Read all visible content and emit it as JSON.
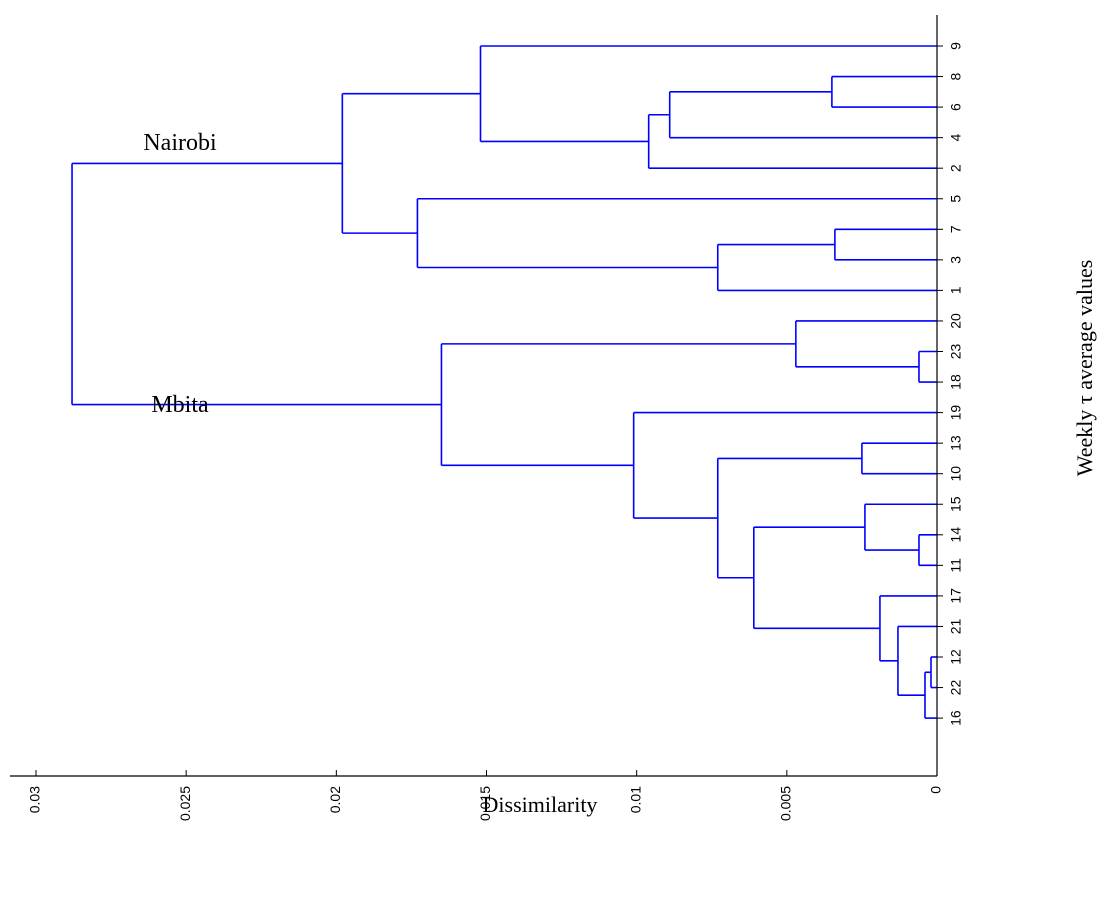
{
  "chart_data": {
    "type": "dendrogram",
    "orientation": "horizontal, leaves on right",
    "xlabel": "Dissimilarity",
    "ylabel": "Weekly τ average values",
    "xlim": [
      0.0302,
      0
    ],
    "xticks": [
      {
        "value": 0.03,
        "label": "0.03"
      },
      {
        "value": 0.025,
        "label": "0.025"
      },
      {
        "value": 0.02,
        "label": "0.02"
      },
      {
        "value": 0.015,
        "label": "0.015"
      },
      {
        "value": 0.01,
        "label": "0.01"
      },
      {
        "value": 0.005,
        "label": "0.005"
      },
      {
        "value": 0,
        "label": "0"
      }
    ],
    "leaves": [
      "9",
      "8",
      "6",
      "4",
      "2",
      "5",
      "7",
      "3",
      "1",
      "20",
      "23",
      "18",
      "19",
      "13",
      "10",
      "15",
      "14",
      "11",
      "17",
      "21",
      "12",
      "22",
      "16"
    ],
    "merges": [
      {
        "id": "m1",
        "children": [
          "12",
          "22"
        ],
        "height": 0.0002
      },
      {
        "id": "m2",
        "children": [
          "m1",
          "16"
        ],
        "height": 0.0004
      },
      {
        "id": "m3",
        "children": [
          "21",
          "m2"
        ],
        "height": 0.0013
      },
      {
        "id": "m4",
        "children": [
          "17",
          "m3"
        ],
        "height": 0.0019
      },
      {
        "id": "m5",
        "children": [
          "14",
          "11"
        ],
        "height": 0.0006
      },
      {
        "id": "m6",
        "children": [
          "15",
          "m5"
        ],
        "height": 0.0024
      },
      {
        "id": "m7",
        "children": [
          "m6",
          "m4"
        ],
        "height": 0.0061
      },
      {
        "id": "m8",
        "children": [
          "13",
          "10"
        ],
        "height": 0.0025
      },
      {
        "id": "m9",
        "children": [
          "m8",
          "m7"
        ],
        "height": 0.0073
      },
      {
        "id": "m10",
        "children": [
          "19",
          "m9"
        ],
        "height": 0.0101
      },
      {
        "id": "m11",
        "children": [
          "23",
          "18"
        ],
        "height": 0.0006
      },
      {
        "id": "m12",
        "children": [
          "20",
          "m11"
        ],
        "height": 0.0047
      },
      {
        "id": "m13",
        "children": [
          "m12",
          "m10"
        ],
        "height": 0.0165
      },
      {
        "id": "m14",
        "children": [
          "7",
          "3"
        ],
        "height": 0.0034
      },
      {
        "id": "m15",
        "children": [
          "m14",
          "1"
        ],
        "height": 0.0073
      },
      {
        "id": "m16",
        "children": [
          "5",
          "m15"
        ],
        "height": 0.0173
      },
      {
        "id": "m17",
        "children": [
          "8",
          "6"
        ],
        "height": 0.0035
      },
      {
        "id": "m18",
        "children": [
          "m17",
          "4"
        ],
        "height": 0.0089
      },
      {
        "id": "m19",
        "children": [
          "m18",
          "2"
        ],
        "height": 0.0096
      },
      {
        "id": "m20",
        "children": [
          "9",
          "m19"
        ],
        "height": 0.0152
      },
      {
        "id": "m21",
        "children": [
          "m20",
          "m16"
        ],
        "height": 0.0198
      },
      {
        "id": "m22",
        "children": [
          "m21",
          "m13"
        ],
        "height": 0.0288
      }
    ],
    "annotations": [
      {
        "text": "Nairobi",
        "cluster": "m21"
      },
      {
        "text": "Mbita",
        "cluster": "m13"
      }
    ],
    "line_color": "#0000ff",
    "grid": false
  }
}
